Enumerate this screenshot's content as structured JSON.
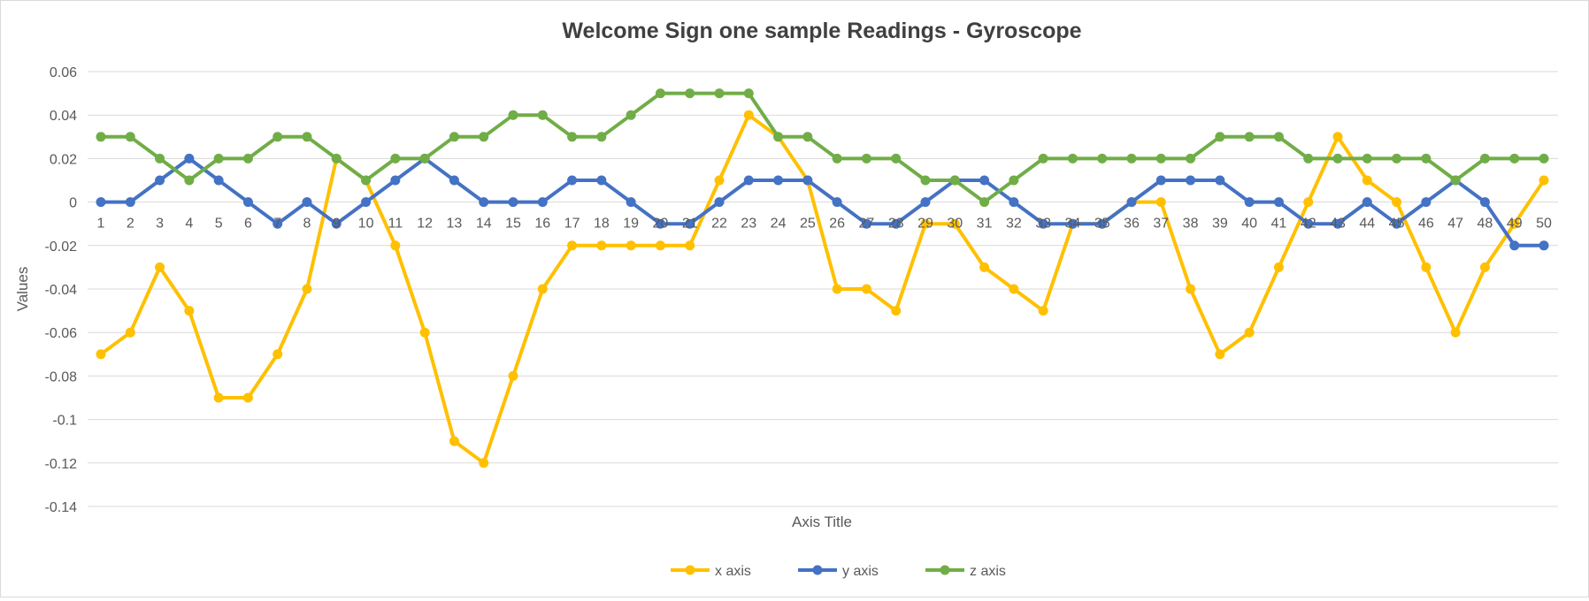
{
  "chart_data": {
    "type": "line",
    "title": "Welcome Sign one sample Readings - Gyroscope",
    "xlabel": "Axis Title",
    "ylabel": "Values",
    "ylim": [
      -0.14,
      0.06
    ],
    "yticks": [
      0.06,
      0.04,
      0.02,
      0,
      -0.02,
      -0.04,
      -0.06,
      -0.08,
      -0.1,
      -0.12,
      -0.14
    ],
    "ytick_labels": [
      "0.06",
      "0.04",
      "0.02",
      "0",
      "-0.02",
      "-0.04",
      "-0.06",
      "-0.08",
      "-0.1",
      "-0.12",
      "-0.14"
    ],
    "grid": true,
    "legend_position": "bottom",
    "categories": [
      "1",
      "2",
      "3",
      "4",
      "5",
      "6",
      "7",
      "8",
      "9",
      "10",
      "11",
      "12",
      "13",
      "14",
      "15",
      "16",
      "17",
      "18",
      "19",
      "20",
      "21",
      "22",
      "23",
      "24",
      "25",
      "26",
      "27",
      "28",
      "29",
      "30",
      "31",
      "32",
      "33",
      "34",
      "35",
      "36",
      "37",
      "38",
      "39",
      "40",
      "41",
      "42",
      "43",
      "44",
      "45",
      "46",
      "47",
      "48",
      "49",
      "50"
    ],
    "series": [
      {
        "name": "x axis",
        "color": "#FFC000",
        "values": [
          -0.07,
          -0.06,
          -0.03,
          -0.05,
          -0.09,
          -0.09,
          -0.07,
          -0.04,
          0.02,
          0.01,
          -0.02,
          -0.06,
          -0.11,
          -0.12,
          -0.08,
          -0.04,
          -0.02,
          -0.02,
          -0.02,
          -0.02,
          -0.02,
          0.01,
          0.04,
          0.03,
          0.01,
          -0.04,
          -0.04,
          -0.05,
          -0.01,
          -0.01,
          -0.03,
          -0.04,
          -0.05,
          -0.01,
          -0.01,
          0,
          0,
          -0.04,
          -0.07,
          -0.06,
          -0.03,
          0,
          0.03,
          0.01,
          0,
          -0.03,
          -0.06,
          -0.03,
          -0.01,
          0.01
        ]
      },
      {
        "name": "y axis",
        "color": "#4472C4",
        "values": [
          0,
          0,
          0.01,
          0.02,
          0.01,
          0,
          -0.01,
          0,
          -0.01,
          0,
          0.01,
          0.02,
          0.01,
          0,
          0,
          0,
          0.01,
          0.01,
          0,
          -0.01,
          -0.01,
          0,
          0.01,
          0.01,
          0.01,
          0,
          -0.01,
          -0.01,
          0,
          0.01,
          0.01,
          0,
          -0.01,
          -0.01,
          -0.01,
          0,
          0.01,
          0.01,
          0.01,
          0,
          0,
          -0.01,
          -0.01,
          0,
          -0.01,
          0,
          0.01,
          0,
          -0.02,
          -0.02
        ]
      },
      {
        "name": "z axis",
        "color": "#70AD47",
        "values": [
          0.03,
          0.03,
          0.02,
          0.01,
          0.02,
          0.02,
          0.03,
          0.03,
          0.02,
          0.01,
          0.02,
          0.02,
          0.03,
          0.03,
          0.04,
          0.04,
          0.03,
          0.03,
          0.04,
          0.05,
          0.05,
          0.05,
          0.05,
          0.03,
          0.03,
          0.02,
          0.02,
          0.02,
          0.01,
          0.01,
          0,
          0.01,
          0.02,
          0.02,
          0.02,
          0.02,
          0.02,
          0.02,
          0.03,
          0.03,
          0.03,
          0.02,
          0.02,
          0.02,
          0.02,
          0.02,
          0.01,
          0.02,
          0.02,
          0.02
        ]
      }
    ]
  }
}
